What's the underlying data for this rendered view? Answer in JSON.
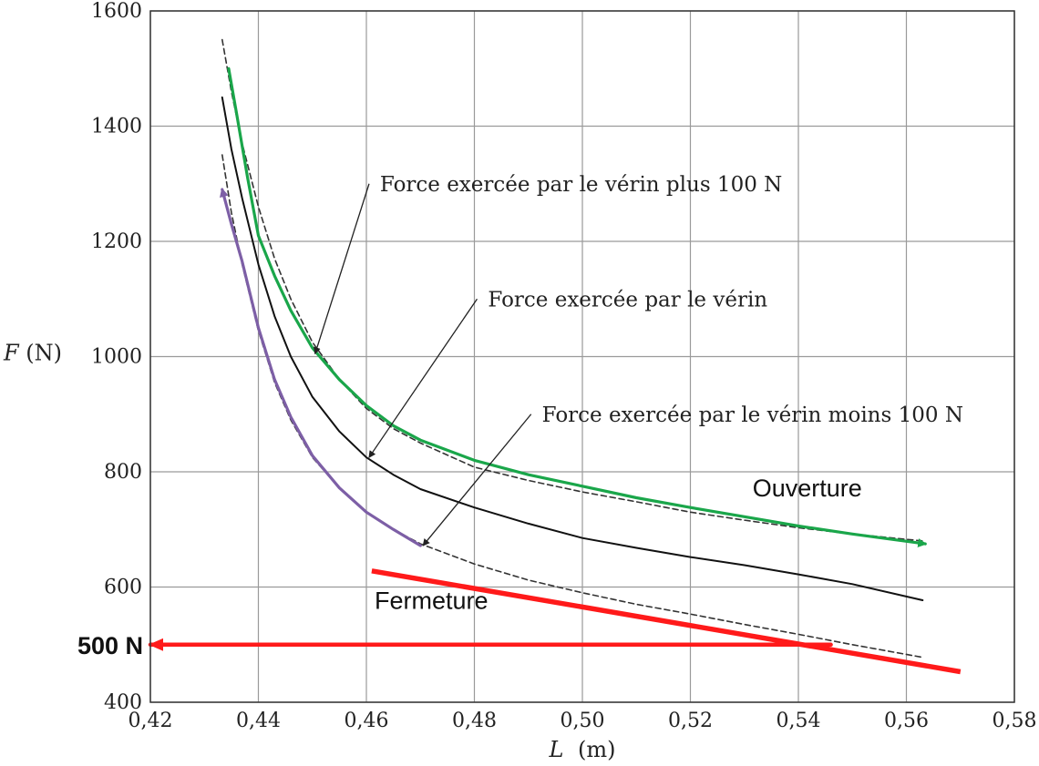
{
  "chart_data": {
    "type": "line",
    "xlabel_var": "L",
    "xlabel_unit": "(m)",
    "ylabel_var": "F",
    "ylabel_unit": "(N)",
    "xlim": [
      0.42,
      0.58
    ],
    "ylim": [
      400,
      1600
    ],
    "x_ticks": [
      0.42,
      0.44,
      0.46,
      0.48,
      0.5,
      0.52,
      0.54,
      0.56,
      0.58
    ],
    "x_tick_labels": [
      "0,42",
      "0,44",
      "0,46",
      "0,48",
      "0,50",
      "0,52",
      "0,54",
      "0,56",
      "0,58"
    ],
    "y_ticks": [
      400,
      600,
      800,
      1000,
      1200,
      1400,
      1600
    ],
    "y_tick_labels": [
      "400",
      "600",
      "800",
      "1000",
      "1200",
      "1400",
      "1600"
    ],
    "grid": true,
    "series": [
      {
        "name": "Force exercée par le vérin plus 100 N",
        "style": "dashed",
        "color": "#333333",
        "x": [
          0.4333,
          0.435,
          0.437,
          0.44,
          0.443,
          0.446,
          0.45,
          0.455,
          0.46,
          0.465,
          0.47,
          0.48,
          0.49,
          0.5,
          0.51,
          0.52,
          0.53,
          0.54,
          0.55,
          0.563
        ],
        "y": [
          1550,
          1460,
          1370,
          1260,
          1170,
          1100,
          1025,
          960,
          910,
          875,
          850,
          808,
          785,
          765,
          748,
          730,
          716,
          703,
          692,
          680
        ]
      },
      {
        "name": "Force exercée par le vérin",
        "style": "solid",
        "color": "#111111",
        "x": [
          0.4333,
          0.435,
          0.437,
          0.44,
          0.443,
          0.446,
          0.45,
          0.455,
          0.46,
          0.465,
          0.47,
          0.48,
          0.49,
          0.5,
          0.51,
          0.52,
          0.53,
          0.54,
          0.55,
          0.563
        ],
        "y": [
          1450,
          1360,
          1275,
          1160,
          1070,
          1000,
          930,
          870,
          825,
          795,
          770,
          738,
          710,
          685,
          668,
          652,
          638,
          622,
          605,
          577
        ]
      },
      {
        "name": "Force exercée par le vérin moins 100 N",
        "style": "dashed",
        "color": "#333333",
        "x": [
          0.4333,
          0.435,
          0.437,
          0.44,
          0.443,
          0.446,
          0.45,
          0.455,
          0.46,
          0.465,
          0.47,
          0.48,
          0.49,
          0.5,
          0.51,
          0.52,
          0.53,
          0.54,
          0.55,
          0.563
        ],
        "y": [
          1350,
          1250,
          1160,
          1045,
          955,
          890,
          825,
          772,
          730,
          700,
          675,
          640,
          612,
          590,
          570,
          553,
          535,
          518,
          500,
          478
        ]
      },
      {
        "name": "Ouverture",
        "style": "arrow",
        "color": "#1aa64a",
        "x": [
          0.4345,
          0.436,
          0.438,
          0.44,
          0.443,
          0.446,
          0.45,
          0.455,
          0.46,
          0.465,
          0.47,
          0.48,
          0.49,
          0.5,
          0.51,
          0.52,
          0.53,
          0.54,
          0.55,
          0.5635
        ],
        "y": [
          1500,
          1420,
          1310,
          1210,
          1140,
          1080,
          1015,
          960,
          915,
          880,
          855,
          820,
          795,
          775,
          755,
          738,
          722,
          706,
          692,
          675
        ]
      },
      {
        "name": "Fermeture",
        "style": "arrow",
        "color": "#7d5fa6",
        "x": [
          0.47,
          0.465,
          0.46,
          0.455,
          0.45,
          0.446,
          0.443,
          0.44,
          0.437,
          0.435,
          0.4333
        ],
        "y": [
          672,
          700,
          730,
          772,
          828,
          895,
          960,
          1050,
          1165,
          1230,
          1290
        ]
      },
      {
        "name": "",
        "style": "thick",
        "color": "#ff1a1a",
        "x": [
          0.461,
          0.57
        ],
        "y": [
          628,
          453
        ]
      },
      {
        "name": "500 N",
        "style": "arrow",
        "color": "#ff1a1a",
        "x": [
          0.546,
          0.42
        ],
        "y": [
          500,
          500
        ]
      }
    ],
    "labels": {
      "plus": "Force exercée par le vérin plus 100 N",
      "nominal": "Force exercée par le vérin",
      "minus": "Force exercée par le vérin moins 100 N",
      "ouverture": "Ouverture",
      "fermeture": "Fermeture",
      "five_hundred": "500 N"
    },
    "pointers": [
      {
        "text_x": 0.4605,
        "text_y": 1300,
        "tip_x": 0.4505,
        "tip_y": 1005
      },
      {
        "text_x": 0.4805,
        "text_y": 1100,
        "tip_x": 0.4605,
        "tip_y": 825
      },
      {
        "text_x": 0.4905,
        "text_y": 900,
        "tip_x": 0.4705,
        "tip_y": 672
      }
    ],
    "label_anchors": {
      "plus": [
        0.4615,
        1300
      ],
      "nominal": [
        0.4815,
        1100
      ],
      "minus": [
        0.4915,
        900
      ],
      "ouverture": [
        0.5305,
        770
      ],
      "fermeture": [
        0.4605,
        575
      ]
    }
  }
}
